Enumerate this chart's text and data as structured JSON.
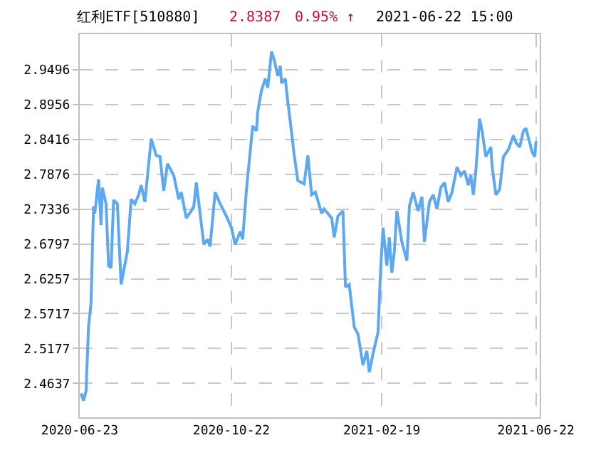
{
  "chart_data": {
    "type": "line",
    "title": "红利ETF[510880]",
    "annotations": [
      "2.8387",
      "0.95% ↑",
      "2021-06-22 15:00"
    ],
    "x": [
      "2020-06-24",
      "2020-06-26",
      "2020-06-28",
      "2020-06-30",
      "2020-07-02",
      "2020-07-04",
      "2020-07-05",
      "2020-07-08",
      "2020-07-10",
      "2020-07-11",
      "2020-07-14",
      "2020-07-16",
      "2020-07-18",
      "2020-07-20",
      "2020-07-23",
      "2020-07-26",
      "2020-07-31",
      "2020-08-03",
      "2020-08-06",
      "2020-08-09",
      "2020-08-11",
      "2020-08-14",
      "2020-08-19",
      "2020-08-23",
      "2020-08-26",
      "2020-08-29",
      "2020-09-01",
      "2020-09-04",
      "2020-09-06",
      "2020-09-10",
      "2020-09-12",
      "2020-09-16",
      "2020-09-20",
      "2020-09-22",
      "2020-09-24",
      "2020-09-27",
      "2020-09-30",
      "2020-10-03",
      "2020-10-05",
      "2020-10-09",
      "2020-10-13",
      "2020-10-18",
      "2020-10-22",
      "2020-10-25",
      "2020-10-29",
      "2020-10-31",
      "2020-11-03",
      "2020-11-08",
      "2020-11-11",
      "2020-11-12",
      "2020-11-15",
      "2020-11-18",
      "2020-11-20",
      "2020-11-23",
      "2020-11-25",
      "2020-11-28",
      "2020-11-30",
      "2020-12-01",
      "2020-12-04",
      "2020-12-06",
      "2020-12-09",
      "2020-12-11",
      "2020-12-14",
      "2020-12-19",
      "2020-12-22",
      "2020-12-25",
      "2020-12-28",
      "2021-01-02",
      "2021-01-04",
      "2021-01-10",
      "2021-01-12",
      "2021-01-15",
      "2021-01-19",
      "2021-01-21",
      "2021-01-24",
      "2021-01-28",
      "2021-01-31",
      "2021-02-04",
      "2021-02-07",
      "2021-02-09",
      "2021-02-12",
      "2021-02-16",
      "2021-02-18",
      "2021-02-20",
      "2021-02-23",
      "2021-02-25",
      "2021-02-27",
      "2021-03-01",
      "2021-03-03",
      "2021-03-07",
      "2021-03-11",
      "2021-03-13",
      "2021-03-16",
      "2021-03-20",
      "2021-03-23",
      "2021-03-25",
      "2021-03-29",
      "2021-04-01",
      "2021-04-04",
      "2021-04-07",
      "2021-04-10",
      "2021-04-13",
      "2021-04-16",
      "2021-04-20",
      "2021-04-23",
      "2021-04-26",
      "2021-04-29",
      "2021-05-01",
      "2021-05-03",
      "2021-05-05",
      "2021-05-08",
      "2021-05-10",
      "2021-05-13",
      "2021-05-17",
      "2021-05-18",
      "2021-05-21",
      "2021-05-24",
      "2021-05-27",
      "2021-05-31",
      "2021-06-04",
      "2021-06-06",
      "2021-06-09",
      "2021-06-12",
      "2021-06-14",
      "2021-06-17",
      "2021-06-19",
      "2021-06-21",
      "2021-06-22"
    ],
    "series": [
      {
        "color": "#5ca8f2",
        "values": [
          2.448,
          2.437,
          2.451,
          2.551,
          2.588,
          2.738,
          2.727,
          2.78,
          2.709,
          2.767,
          2.742,
          2.646,
          2.643,
          2.748,
          2.742,
          2.617,
          2.668,
          2.749,
          2.742,
          2.756,
          2.771,
          2.745,
          2.843,
          2.817,
          2.815,
          2.762,
          2.804,
          2.793,
          2.786,
          2.749,
          2.76,
          2.72,
          2.731,
          2.738,
          2.775,
          2.727,
          2.679,
          2.687,
          2.676,
          2.76,
          2.742,
          2.723,
          2.705,
          2.679,
          2.699,
          2.687,
          2.764,
          2.863,
          2.855,
          2.885,
          2.918,
          2.936,
          2.922,
          2.978,
          2.966,
          2.94,
          2.956,
          2.929,
          2.936,
          2.9,
          2.853,
          2.819,
          2.778,
          2.773,
          2.817,
          2.756,
          2.76,
          2.727,
          2.734,
          2.72,
          2.69,
          2.723,
          2.731,
          2.613,
          2.617,
          2.551,
          2.54,
          2.492,
          2.514,
          2.481,
          2.51,
          2.543,
          2.639,
          2.705,
          2.646,
          2.69,
          2.635,
          2.668,
          2.731,
          2.683,
          2.654,
          2.738,
          2.76,
          2.731,
          2.753,
          2.683,
          2.745,
          2.756,
          2.734,
          2.767,
          2.775,
          2.745,
          2.76,
          2.799,
          2.786,
          2.793,
          2.771,
          2.786,
          2.756,
          2.793,
          2.874,
          2.855,
          2.815,
          2.83,
          2.8,
          2.756,
          2.764,
          2.815,
          2.826,
          2.848,
          2.837,
          2.83,
          2.855,
          2.859,
          2.837,
          2.822,
          2.815,
          2.839
        ]
      }
    ],
    "xlim": [
      "2020-06-23",
      "2021-06-25"
    ],
    "xticks": [
      "2020-06-23",
      "2020-10-22",
      "2021-02-19",
      "2021-06-22"
    ],
    "ylim": [
      2.411,
      3.005
    ],
    "yticks": [
      2.4637,
      2.5177,
      2.5717,
      2.6257,
      2.6797,
      2.7336,
      2.7876,
      2.8416,
      2.8956,
      2.9496
    ],
    "grid": true,
    "line_style": "solid"
  }
}
